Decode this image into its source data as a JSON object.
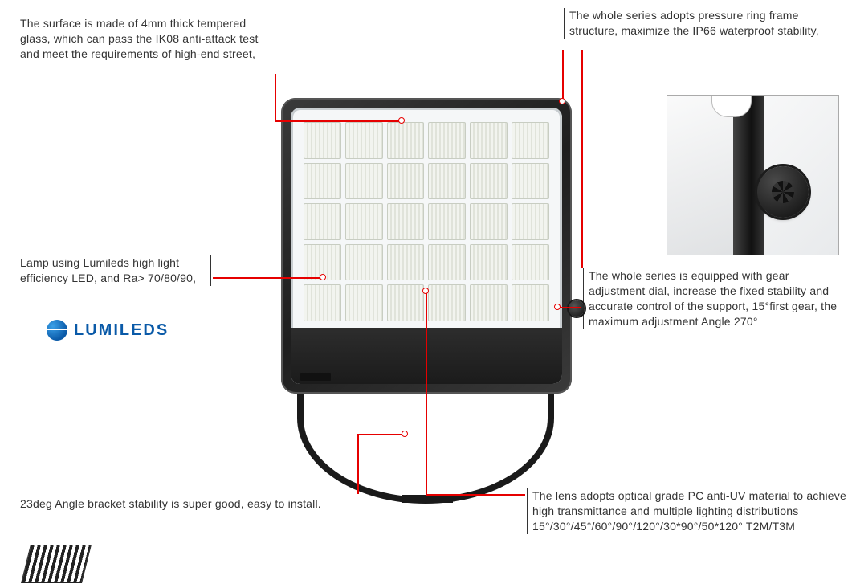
{
  "callouts": {
    "surface": "The surface is made of 4mm thick tempered glass, which can pass the IK08 anti-attack test and meet the requirements of high-end street,",
    "frame": "The whole series adopts pressure ring frame structure, maximize the IP66 waterproof stability,",
    "lamp": "Lamp using Lumileds  high light efficiency LED, and Ra> 70/80/90,",
    "dial": "The whole series is equipped with gear adjustment dial, increase the fixed stability and accurate control of the support, 15°first gear, the maximum adjustment Angle 270°",
    "bracket": "23deg Angle bracket stability is super good,  easy to install.",
    "lens": "The lens adopts optical grade PC anti-UV material to achieve high transmittance and multiple lighting distributions 15°/30°/45°/60°/90°/120°/30*90°/50*120° T2M/T3M"
  },
  "logo": {
    "text": "LUMILEDS"
  },
  "product": {
    "led_grid": {
      "rows": 5,
      "cols": 6
    },
    "colors": {
      "housing_dark": "#1e1e1e",
      "housing_light": "#3a3a3a",
      "face": "#f5f7f8",
      "led_tile": "#e8ebe3",
      "accent_red": "#e60000",
      "detail_border": "#aaaaaa",
      "logo_blue": "#0a5aa8"
    }
  }
}
